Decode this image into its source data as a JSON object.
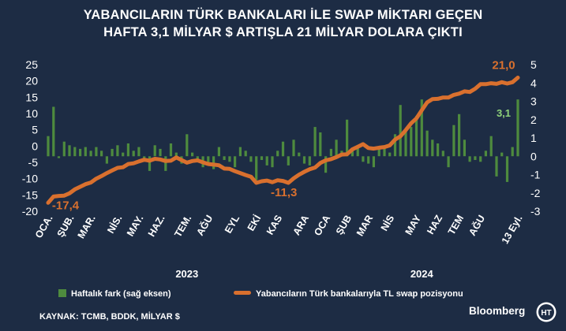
{
  "title_lines": [
    "YABANCILARIN TÜRK BANKALARI İLE SWAP MİKTARI GEÇEN",
    "HAFTA 3,1 MİLYAR $ ARTIŞLA 21 MİLYAR DOLARA ÇIKTI"
  ],
  "legend": {
    "bars_label": "Haftalık fark (sağ eksen)",
    "line_label": "Yabancıların Türk bankalarıyla TL swap pozisyonu"
  },
  "source": "KAYNAK: TCMB, BDDK, MİLYAR $",
  "brand": "Bloomberg",
  "logo_text": "HT",
  "colors": {
    "background": "#1d2c44",
    "line": "#d9702e",
    "bars": "#4e8b3e",
    "axis_text": "#ffffff",
    "callout_last_bar": "#8fd37a"
  },
  "chart_data": {
    "type": "bar+line",
    "title": "YABANCILARIN TÜRK BANKALARI İLE SWAP MİKTARI GEÇEN HAFTA 3,1 MİLYAR $ ARTIŞLA 21 MİLYAR DOLARA ÇIKTI",
    "x_tick_labels": [
      "OCA.",
      "ŞUB.",
      "MAR.",
      "NİS.",
      "MAY.",
      "HAZ.",
      "TEM.",
      "AĞU",
      "EYL",
      "EKİ",
      "KAS",
      "ARA",
      "OCA",
      "ŞUB",
      "MAR",
      "NİS",
      "MAY",
      "HAZ",
      "TEM",
      "AĞU",
      "13 Eyl."
    ],
    "x_tick_week_index": [
      0,
      4,
      8,
      13,
      17,
      21,
      26,
      30,
      35,
      39,
      43,
      48,
      52,
      56,
      60,
      64,
      69,
      73,
      77,
      81,
      88
    ],
    "year_labels": [
      {
        "label": "2023",
        "center_week": 26
      },
      {
        "label": "2024",
        "center_week": 70
      }
    ],
    "left_axis": {
      "min": -20,
      "max": 25,
      "ticks": [
        25,
        20,
        15,
        10,
        5,
        0,
        -5,
        -10,
        -15,
        -20
      ]
    },
    "right_axis": {
      "min": -3,
      "max": 5,
      "ticks": [
        5,
        4,
        3,
        2,
        1,
        0,
        -1,
        -2,
        -3
      ]
    },
    "grid": false,
    "legend_position": "bottom",
    "series": [
      {
        "name": "Yabancıların Türk bankalarıyla TL swap pozisyonu",
        "kind": "line",
        "axis": "left",
        "values": [
          -17.4,
          -15.5,
          -15.3,
          -15.2,
          -14.5,
          -13.3,
          -12.5,
          -11.7,
          -11.2,
          -10.0,
          -9.2,
          -8.3,
          -7.5,
          -6.7,
          -6.5,
          -5.5,
          -5.3,
          -4.7,
          -4.2,
          -4.5,
          -3.9,
          -4.1,
          -4.6,
          -4.5,
          -3.5,
          -4.3,
          -5.1,
          -4.6,
          -4.4,
          -5.0,
          -5.5,
          -5.7,
          -5.9,
          -6.9,
          -7.0,
          -7.7,
          -8.3,
          -8.9,
          -9.4,
          -11.3,
          -10.8,
          -10.6,
          -11.1,
          -10.5,
          -10.7,
          -11.3,
          -9.9,
          -8.8,
          -7.9,
          -7.1,
          -6.6,
          -5.2,
          -4.4,
          -4.0,
          -3.4,
          -2.6,
          -2.5,
          -1.0,
          -0.2,
          0.6,
          -0.6,
          -0.8,
          -0.5,
          -0.3,
          0.2,
          2.0,
          3.0,
          4.9,
          7.0,
          8.5,
          11.0,
          13.4,
          14.4,
          14.5,
          14.9,
          14.9,
          15.7,
          16.1,
          16.8,
          16.6,
          17.6,
          19.0,
          19.0,
          19.3,
          19.1,
          19.6,
          19.2,
          19.6,
          21.0
        ]
      },
      {
        "name": "Haftalık fark (sağ eksen)",
        "kind": "bar",
        "axis": "right",
        "values": [
          1.1,
          2.7,
          -0.1,
          0.8,
          0.6,
          0.5,
          0.4,
          0.5,
          0.3,
          0.5,
          0.3,
          -0.4,
          0.4,
          0.6,
          0.2,
          0.7,
          0.3,
          0.5,
          -0.3,
          -0.8,
          0.6,
          0.4,
          -0.8,
          0.7,
          0.2,
          -0.4,
          1.2,
          0.2,
          -0.3,
          -0.6,
          -0.5,
          -0.7,
          0.5,
          -0.2,
          -0.3,
          -0.6,
          0.5,
          0.3,
          -0.3,
          -1.3,
          -0.2,
          -0.5,
          -0.6,
          0.3,
          0.8,
          -0.5,
          0.9,
          0.2,
          -0.4,
          -0.5,
          1.6,
          1.3,
          -0.9,
          0.4,
          0.9,
          0.3,
          2.0,
          0.3,
          0.6,
          -0.3,
          -0.4,
          -0.6,
          0.4,
          0.6,
          0.2,
          1.2,
          2.8,
          1.4,
          1.6,
          2.2,
          3.1,
          1.4,
          0.9,
          0.7,
          0.3,
          -0.6,
          1.7,
          2.3,
          0.9,
          -0.3,
          -0.2,
          -0.3,
          0.3,
          1.1,
          -1.1,
          0.2,
          -1.4,
          0.5,
          3.1
        ]
      }
    ],
    "annotations": [
      {
        "text": "-17,4",
        "week": 0,
        "series": "line"
      },
      {
        "text": "-11,3",
        "week": 39,
        "series": "line"
      },
      {
        "text": "21,0",
        "week": 88,
        "series": "line"
      },
      {
        "text": "3,1",
        "week": 88,
        "series": "bars"
      }
    ]
  }
}
